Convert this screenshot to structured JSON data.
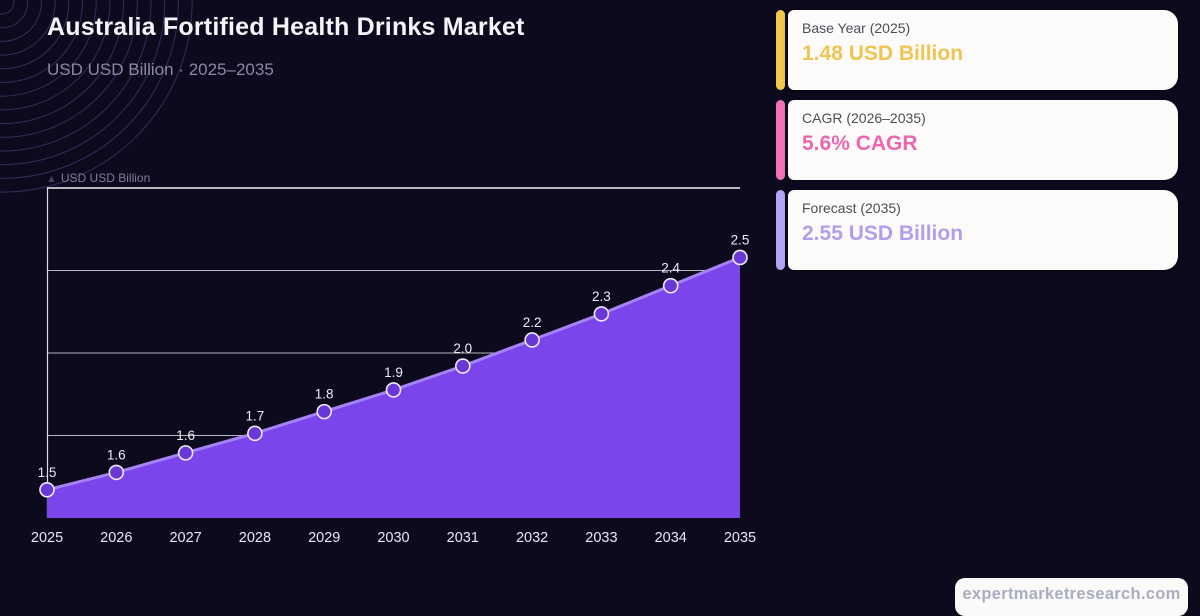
{
  "header": {
    "title": "Australia Fortified Health Drinks Market",
    "subtitle": "USD USD Billion  ·  2025–2035"
  },
  "cards": [
    {
      "label": "Base Year (2025)",
      "value": "1.48 USD Billion",
      "accent_color": "#F2C94D",
      "value_color": "#EFC453"
    },
    {
      "label": "CAGR (2026–2035)",
      "value": "5.6% CAGR",
      "accent_color": "#F272B5",
      "value_color": "#EE67AE"
    },
    {
      "label": "Forecast (2035)",
      "value": "2.55 USD Billion",
      "accent_color": "#B5A4F4",
      "value_color": "#B0A0EC"
    }
  ],
  "chart": {
    "axis_caption_icon": "▲",
    "axis_caption": "USD USD Billion"
  },
  "chart_data": {
    "type": "area",
    "title": "Australia Fortified Health Drinks Market",
    "x": [
      2025,
      2026,
      2027,
      2028,
      2029,
      2030,
      2031,
      2032,
      2033,
      2034,
      2035
    ],
    "values": [
      1.48,
      1.56,
      1.65,
      1.74,
      1.84,
      1.94,
      2.05,
      2.17,
      2.29,
      2.42,
      2.55
    ],
    "point_labels": [
      "1.5",
      "1.6",
      "1.6",
      "1.7",
      "1.8",
      "1.9",
      "2.0",
      "2.2",
      "2.3",
      "2.4",
      "2.5"
    ],
    "x_tick_labels": [
      "2025",
      "2026",
      "2027",
      "2028",
      "2029",
      "2030",
      "2031",
      "2032",
      "2033",
      "2034",
      "2035"
    ],
    "xlabel": "",
    "ylabel": "USD USD Billion",
    "ylim": [
      1.35,
      2.87
    ],
    "grid": "horizontal gridlines drawn behind opaque area fill",
    "legend": "none",
    "colors": {
      "background": "#0E0A1E",
      "area": "#7B45EC",
      "line": "#A483F5",
      "point_fill": "#6A38D6",
      "point_stroke": "#EFEAFF",
      "grid": "#FFFFFF",
      "label": "#EDEAF4",
      "tick": "#E9E6F0"
    }
  },
  "footer": {
    "watermark": "expertmarketresearch.com"
  }
}
